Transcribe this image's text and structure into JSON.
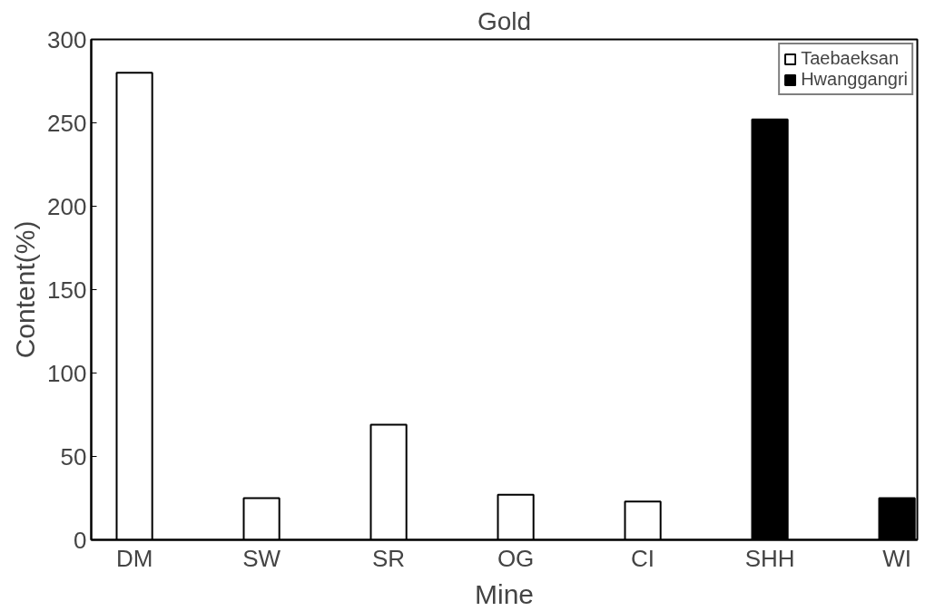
{
  "chart_data": {
    "type": "bar",
    "title": "Gold",
    "xlabel": "Mine",
    "ylabel": "Content(%)",
    "categories": [
      "DM",
      "SW",
      "SR",
      "OG",
      "CI",
      "SHH",
      "WI"
    ],
    "series": [
      {
        "name": "Taebaeksan",
        "color": "#ffffff",
        "values": [
          280,
          25,
          69,
          27,
          23,
          null,
          null
        ]
      },
      {
        "name": "Hwanggangri",
        "color": "#000000",
        "values": [
          null,
          null,
          null,
          null,
          null,
          252,
          25
        ]
      }
    ],
    "ylim": [
      0,
      300
    ],
    "yticks": [
      0,
      50,
      100,
      150,
      200,
      250,
      300
    ],
    "grid": false,
    "legend": "top right"
  }
}
